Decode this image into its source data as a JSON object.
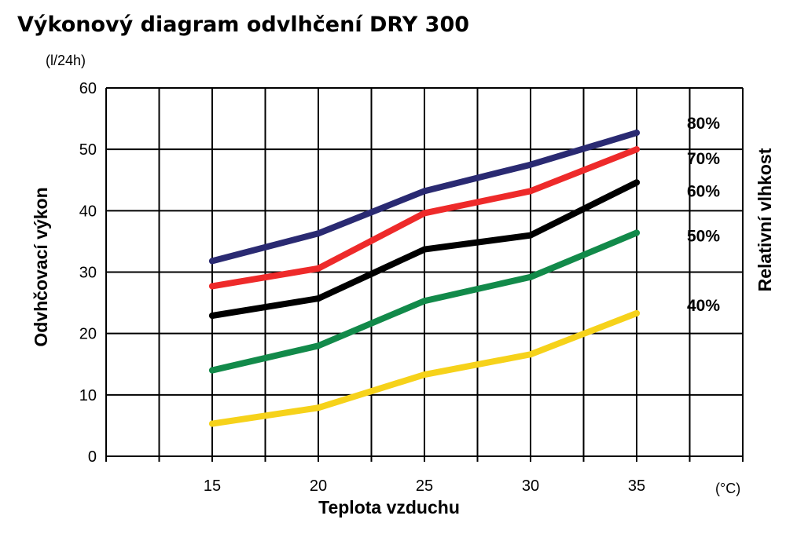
{
  "chart_data": {
    "type": "line",
    "title": "Výkonový diagram odvlhčení DRY 300",
    "ylabel": "Odvhčovací výkon",
    "yunit": "(l/24h)",
    "xlabel": "Teplota vzduchu",
    "xunit": "(°C)",
    "right_label": "Relativní vlhkost",
    "ylim": [
      0,
      60
    ],
    "yticks": [
      "0",
      "10",
      "20",
      "30",
      "40",
      "50",
      "60"
    ],
    "xlim": [
      10,
      40
    ],
    "xticks": [
      "15",
      "20",
      "25",
      "30",
      "35"
    ],
    "x": [
      15,
      20,
      25,
      30,
      35
    ],
    "grid": true,
    "series": [
      {
        "name": "80%",
        "color": "#2a2a72",
        "values": [
          31.8,
          36.3,
          43.2,
          47.5,
          52.7
        ]
      },
      {
        "name": "70%",
        "color": "#ee2a2a",
        "values": [
          27.7,
          30.6,
          39.6,
          43.2,
          50.0
        ]
      },
      {
        "name": "60%",
        "color": "#000000",
        "values": [
          22.9,
          25.7,
          33.7,
          36.0,
          44.6
        ]
      },
      {
        "name": "50%",
        "color": "#128a4a",
        "values": [
          14.0,
          18.0,
          25.3,
          29.2,
          36.4
        ]
      },
      {
        "name": "40%",
        "color": "#f6d21a",
        "values": [
          5.3,
          7.9,
          13.3,
          16.6,
          23.3
        ]
      }
    ]
  }
}
